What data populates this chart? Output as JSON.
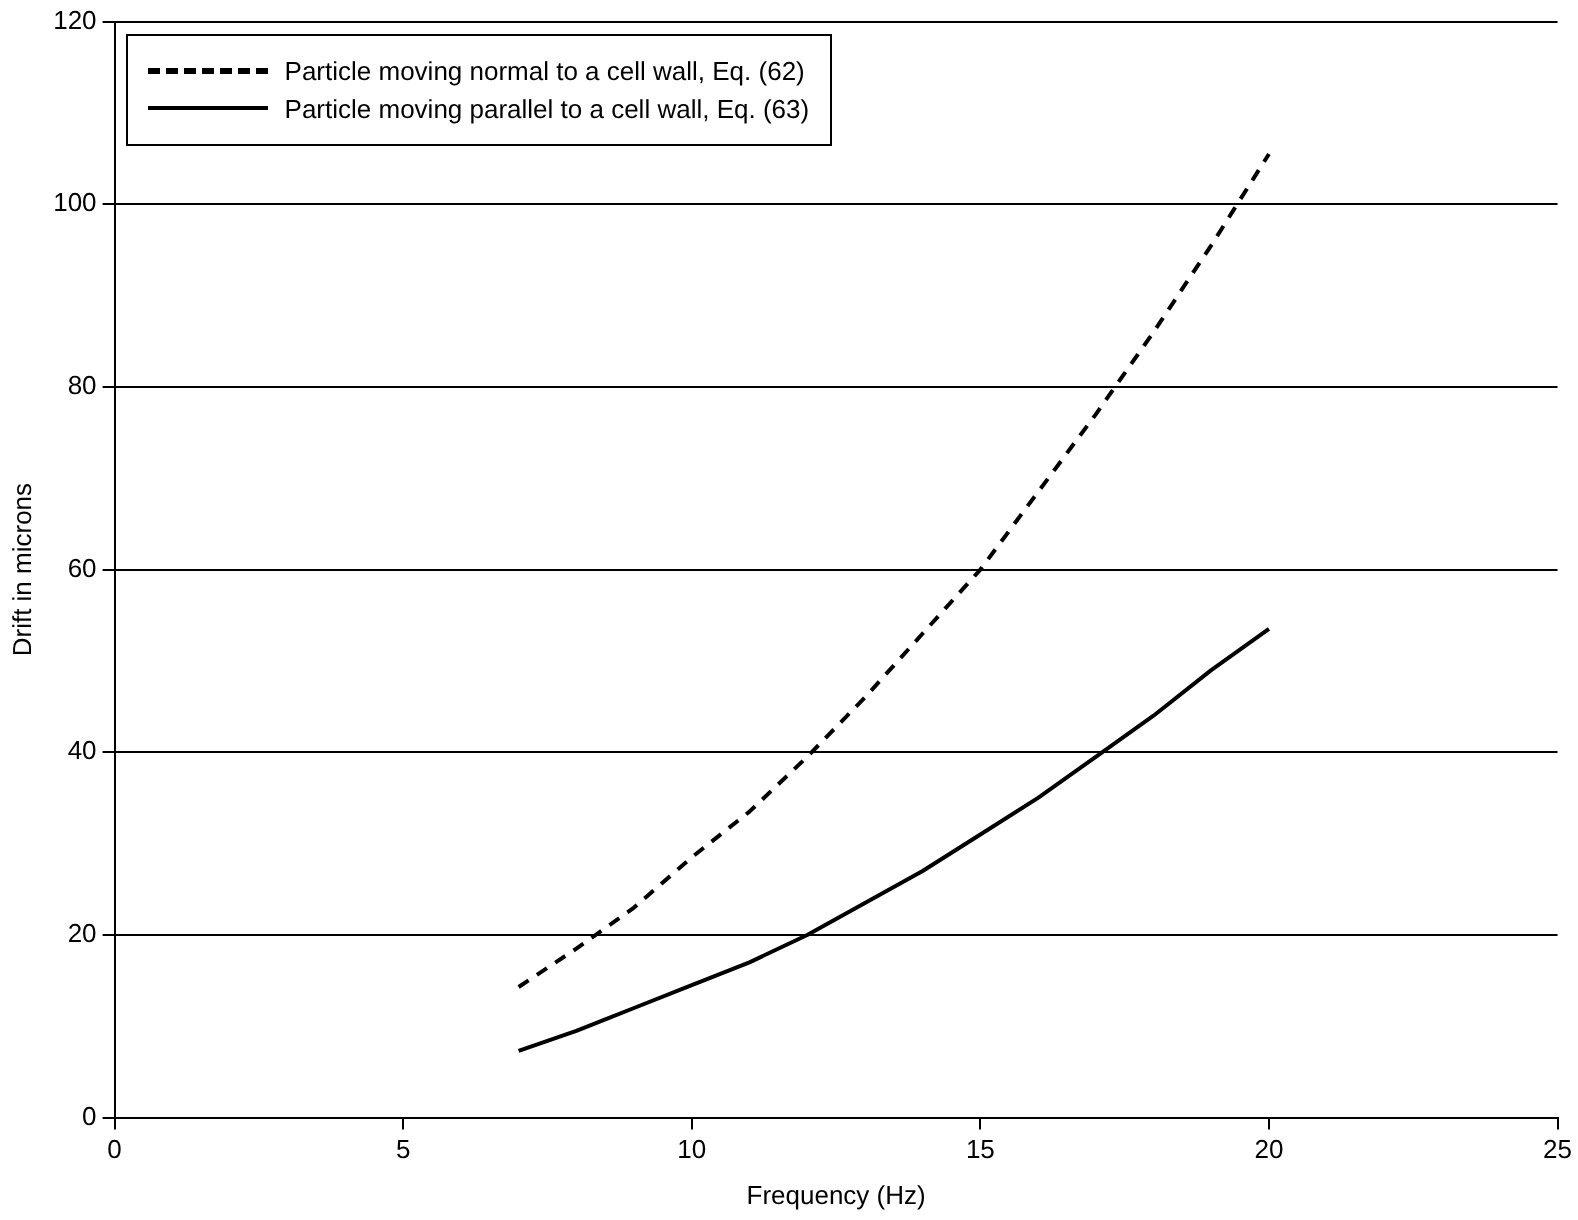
{
  "chart_data": {
    "type": "line",
    "xlabel": "Frequency (Hz)",
    "ylabel": "Drift in microns",
    "x": [
      7,
      8,
      9,
      10,
      11,
      12,
      13,
      14,
      15,
      16,
      17,
      18,
      19,
      20
    ],
    "series": [
      {
        "name": "Particle moving normal to a cell wall, Eq. (62)",
        "color": "#000000",
        "line_style": "dashed",
        "values": [
          14.3,
          18.5,
          23,
          28.5,
          33.5,
          39.5,
          46,
          53,
          60,
          68.5,
          77,
          86,
          95.5,
          105.5
        ]
      },
      {
        "name": "Particle moving parallel to a cell wall, Eq. (63)",
        "color": "#000000",
        "line_style": "solid",
        "values": [
          7.3,
          9.5,
          12,
          14.5,
          17,
          20,
          23.5,
          27,
          31,
          35,
          39.5,
          44,
          49,
          53.5
        ]
      }
    ],
    "xlim": [
      0,
      25
    ],
    "xticks": [
      0,
      5,
      10,
      15,
      20,
      25
    ],
    "ylim": [
      0,
      120
    ],
    "yticks": [
      0,
      20,
      40,
      60,
      80,
      100,
      120
    ],
    "grid": "y",
    "legend": "top left",
    "marker": "none"
  }
}
